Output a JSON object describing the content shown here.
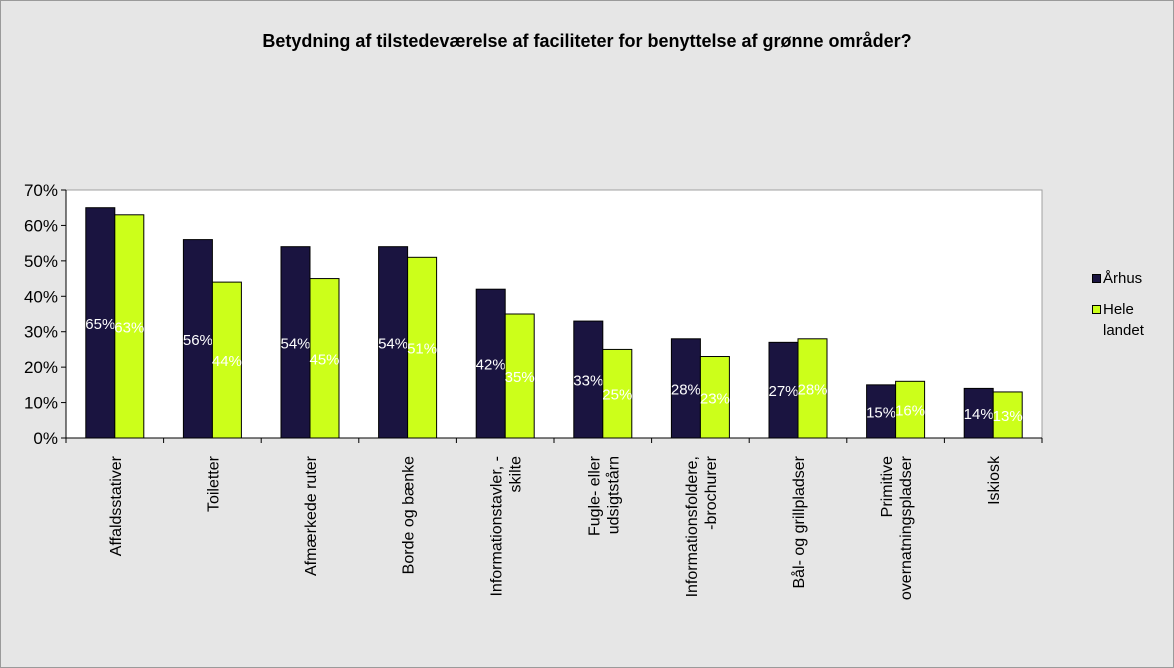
{
  "chart_data": {
    "type": "bar",
    "title": "Betydning af tilstedeværelse af faciliteter for benyttelse af grønne områder?",
    "categories": [
      "Affaldsstativer",
      "Toiletter",
      "Afmærkede ruter",
      "Borde og bænke",
      "Informationstavler, - skilte",
      "Fugle- eller udsigtstårn",
      "Informationsfoldere, -brochurer",
      "Bål- og grillpladser",
      "Primitive overnatningspladser",
      "Iskiosk"
    ],
    "category_lines": [
      [
        "Affaldsstativer"
      ],
      [
        "Toiletter"
      ],
      [
        "Afmærkede ruter"
      ],
      [
        "Borde og bænke"
      ],
      [
        "Informationstavler, -",
        "skilte"
      ],
      [
        "Fugle- eller",
        "udsigtstårn"
      ],
      [
        "Informationsfoldere,",
        "-brochurer"
      ],
      [
        "Bål- og grillpladser"
      ],
      [
        "Primitive",
        "overnatningspladser"
      ],
      [
        "Iskiosk"
      ]
    ],
    "series": [
      {
        "name": "Århus",
        "color": "#1a1440",
        "values": [
          65,
          56,
          54,
          54,
          42,
          33,
          28,
          27,
          15,
          14
        ],
        "labels": [
          "65%",
          "56%",
          "54%",
          "54%",
          "42%",
          "33%",
          "28%",
          "27%",
          "15%",
          "14%"
        ]
      },
      {
        "name": "Hele landet",
        "color": "#ccff1a",
        "values": [
          63,
          44,
          45,
          51,
          35,
          25,
          23,
          28,
          16,
          13
        ],
        "labels": [
          "63%",
          "44%",
          "45%",
          "51%",
          "35%",
          "25%",
          "23%",
          "28%",
          "16%",
          "13%"
        ]
      }
    ],
    "ylim": [
      0,
      70
    ],
    "yticks": [
      0,
      10,
      20,
      30,
      40,
      50,
      60,
      70
    ],
    "ytick_labels": [
      "0%",
      "10%",
      "20%",
      "30%",
      "40%",
      "50%",
      "60%",
      "70%"
    ],
    "xlabel": "",
    "ylabel": "",
    "grid": false,
    "legend_position": "right",
    "plot_background": "#ffffff",
    "chart_background": "#e6e6e6"
  }
}
